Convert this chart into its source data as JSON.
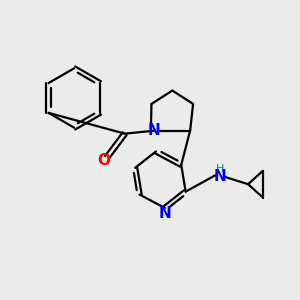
{
  "bg_color": "#ebebeb",
  "bond_color": "#000000",
  "nitrogen_color": "#0000ff",
  "oxygen_color": "#ff0000",
  "nh_color": "#008080",
  "line_width": 1.6,
  "figsize": [
    3.0,
    3.0
  ],
  "dpi": 100,
  "xlim": [
    0,
    10
  ],
  "ylim": [
    0,
    10
  ]
}
